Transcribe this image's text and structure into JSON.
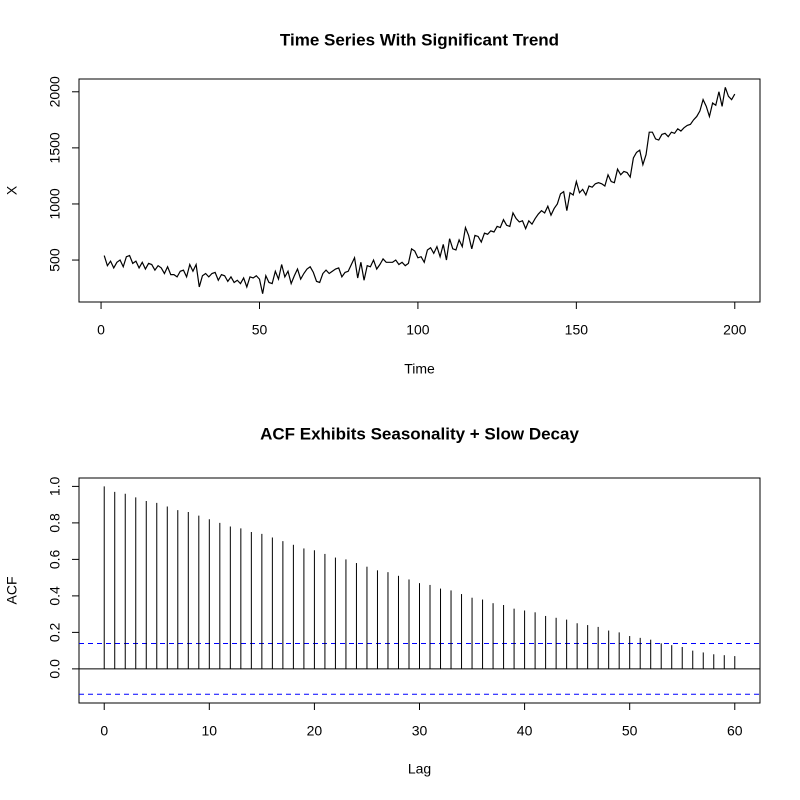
{
  "chart_data": [
    {
      "type": "line",
      "title": "Time Series With Significant Trend",
      "xlabel": "Time",
      "ylabel": "X",
      "x": [
        1,
        2,
        3,
        4,
        5,
        6,
        7,
        8,
        9,
        10,
        11,
        12,
        13,
        14,
        15,
        16,
        17,
        18,
        19,
        20,
        21,
        22,
        23,
        24,
        25,
        26,
        27,
        28,
        29,
        30,
        31,
        32,
        33,
        34,
        35,
        36,
        37,
        38,
        39,
        40,
        41,
        42,
        43,
        44,
        45,
        46,
        47,
        48,
        49,
        50,
        51,
        52,
        53,
        54,
        55,
        56,
        57,
        58,
        59,
        60,
        61,
        62,
        63,
        64,
        65,
        66,
        67,
        68,
        69,
        70,
        71,
        72,
        73,
        74,
        75,
        76,
        77,
        78,
        79,
        80,
        81,
        82,
        83,
        84,
        85,
        86,
        87,
        88,
        89,
        90,
        91,
        92,
        93,
        94,
        95,
        96,
        97,
        98,
        99,
        100,
        101,
        102,
        103,
        104,
        105,
        106,
        107,
        108,
        109,
        110,
        111,
        112,
        113,
        114,
        115,
        116,
        117,
        118,
        119,
        120,
        121,
        122,
        123,
        124,
        125,
        126,
        127,
        128,
        129,
        130,
        131,
        132,
        133,
        134,
        135,
        136,
        137,
        138,
        139,
        140,
        141,
        142,
        143,
        144,
        145,
        146,
        147,
        148,
        149,
        150,
        151,
        152,
        153,
        154,
        155,
        156,
        157,
        158,
        159,
        160,
        161,
        162,
        163,
        164,
        165,
        166,
        167,
        168,
        169,
        170,
        171,
        172,
        173,
        174,
        175,
        176,
        177,
        178,
        179,
        180,
        181,
        182,
        183,
        184,
        185,
        186,
        187,
        188,
        189,
        190,
        191,
        192,
        193,
        194,
        195,
        196,
        197,
        198,
        199,
        200
      ],
      "values": [
        540,
        450,
        490,
        430,
        480,
        500,
        440,
        530,
        540,
        470,
        490,
        430,
        480,
        420,
        470,
        460,
        410,
        450,
        430,
        380,
        440,
        370,
        370,
        350,
        400,
        410,
        350,
        460,
        400,
        460,
        260,
        360,
        380,
        350,
        380,
        390,
        320,
        370,
        360,
        310,
        350,
        300,
        320,
        290,
        340,
        260,
        350,
        340,
        360,
        330,
        200,
        360,
        300,
        290,
        400,
        330,
        460,
        350,
        400,
        290,
        360,
        420,
        330,
        380,
        420,
        440,
        390,
        310,
        300,
        380,
        410,
        380,
        400,
        420,
        430,
        350,
        390,
        400,
        460,
        520,
        340,
        480,
        320,
        450,
        440,
        500,
        420,
        460,
        510,
        480,
        480,
        480,
        500,
        460,
        480,
        450,
        470,
        600,
        580,
        520,
        530,
        480,
        590,
        610,
        560,
        620,
        530,
        640,
        500,
        690,
        600,
        590,
        680,
        620,
        790,
        720,
        600,
        720,
        710,
        660,
        740,
        730,
        760,
        750,
        800,
        790,
        860,
        810,
        800,
        920,
        870,
        840,
        850,
        780,
        850,
        820,
        870,
        910,
        940,
        920,
        980,
        900,
        960,
        1000,
        1090,
        1110,
        940,
        1100,
        1080,
        1200,
        1100,
        1130,
        1080,
        1160,
        1150,
        1180,
        1190,
        1180,
        1160,
        1260,
        1200,
        1190,
        1310,
        1260,
        1290,
        1280,
        1240,
        1410,
        1460,
        1480,
        1350,
        1440,
        1640,
        1640,
        1580,
        1570,
        1620,
        1630,
        1600,
        1640,
        1630,
        1670,
        1650,
        1680,
        1700,
        1710,
        1750,
        1780,
        1830,
        1930,
        1870,
        1780,
        1900,
        1880,
        2000,
        1870,
        2040,
        1960,
        1930,
        1980
      ],
      "color": "#000000",
      "xlim": [
        -6.96,
        207.96
      ],
      "ylim": [
        126,
        2114
      ],
      "xticks": [
        0,
        50,
        100,
        150,
        200
      ],
      "yticks": [
        500,
        1000,
        1500,
        2000
      ]
    },
    {
      "type": "acf",
      "title": "ACF Exhibits Seasonality + Slow Decay",
      "xlabel": "Lag",
      "ylabel": "ACF",
      "x": [
        0,
        1,
        2,
        3,
        4,
        5,
        6,
        7,
        8,
        9,
        10,
        11,
        12,
        13,
        14,
        15,
        16,
        17,
        18,
        19,
        20,
        21,
        22,
        23,
        24,
        25,
        26,
        27,
        28,
        29,
        30,
        31,
        32,
        33,
        34,
        35,
        36,
        37,
        38,
        39,
        40,
        41,
        42,
        43,
        44,
        45,
        46,
        47,
        48,
        49,
        50,
        51,
        52,
        53,
        54,
        55,
        56,
        57,
        58,
        59,
        60
      ],
      "values": [
        1.0,
        0.97,
        0.96,
        0.94,
        0.92,
        0.91,
        0.89,
        0.87,
        0.86,
        0.84,
        0.82,
        0.8,
        0.78,
        0.77,
        0.75,
        0.74,
        0.72,
        0.7,
        0.68,
        0.66,
        0.65,
        0.63,
        0.61,
        0.6,
        0.58,
        0.56,
        0.54,
        0.53,
        0.51,
        0.49,
        0.47,
        0.46,
        0.44,
        0.43,
        0.41,
        0.39,
        0.38,
        0.36,
        0.35,
        0.33,
        0.32,
        0.31,
        0.29,
        0.28,
        0.27,
        0.25,
        0.24,
        0.23,
        0.21,
        0.2,
        0.18,
        0.17,
        0.16,
        0.14,
        0.13,
        0.12,
        0.1,
        0.09,
        0.08,
        0.075,
        0.07
      ],
      "color": "#000000",
      "conf_limits": [
        -0.139,
        0.139
      ],
      "conf_color": "#0000ff",
      "xlim": [
        -2.4,
        62.4
      ],
      "ylim": [
        -0.187,
        1.046
      ],
      "xticks": [
        0,
        10,
        20,
        30,
        40,
        50,
        60
      ],
      "yticks": [
        {
          "value": 0,
          "label": "0.0"
        },
        0.2,
        0.4,
        0.6,
        0.8,
        {
          "value": 1,
          "label": "1.0"
        }
      ]
    }
  ]
}
